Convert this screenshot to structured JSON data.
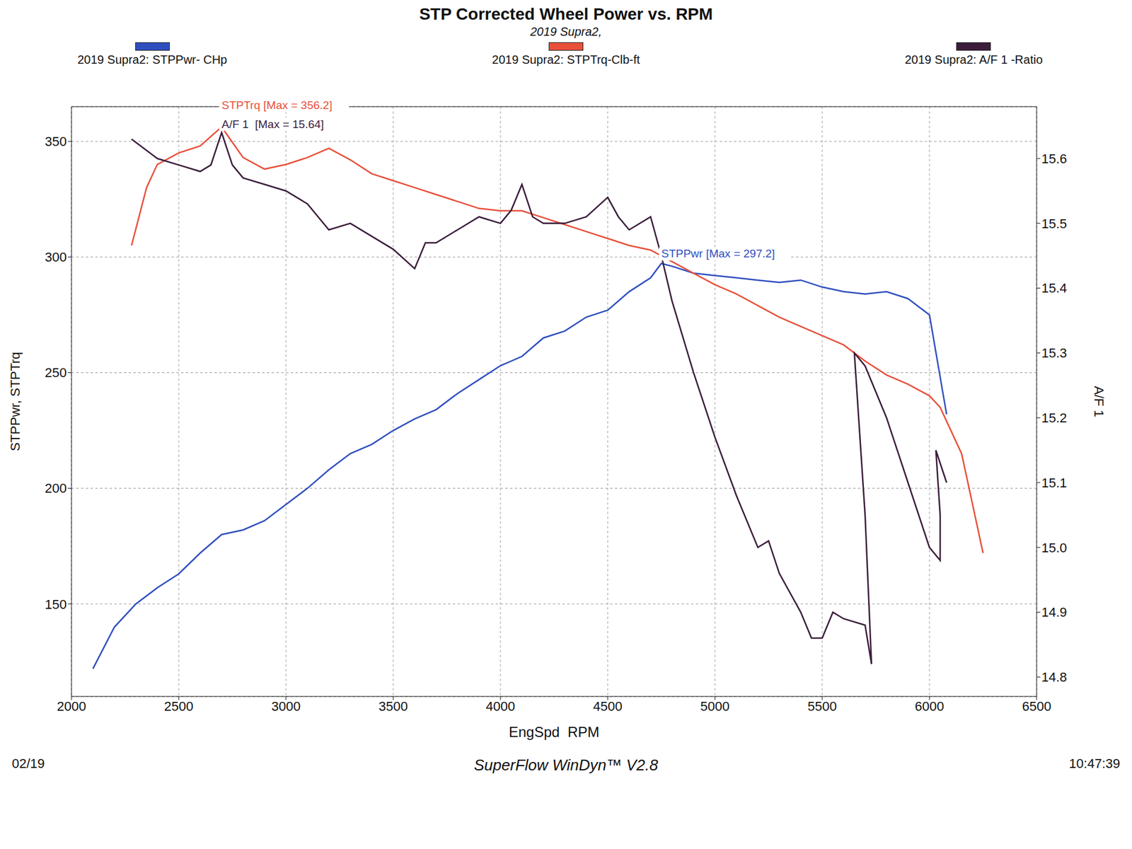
{
  "chart_data": {
    "type": "line",
    "title": "STP Corrected Wheel Power vs. RPM",
    "subtitle": "2019 Supra2,",
    "x_label": "EngSpd  RPM",
    "y_label": "STPPwr, STPTrq",
    "y2_label": "A/F 1",
    "footer": "SuperFlow WinDyn™ V2.8",
    "time": "10:47:39",
    "date": "02/19",
    "xlim": [
      2000,
      6500
    ],
    "xticks": [
      2000,
      2500,
      3000,
      3500,
      4000,
      4500,
      5000,
      5500,
      6000,
      6500
    ],
    "ylim": [
      110,
      365
    ],
    "yticks": [
      150,
      200,
      250,
      300,
      350
    ],
    "y2lim": [
      14.77,
      15.68
    ],
    "y2ticks": [
      14.8,
      14.9,
      15.0,
      15.1,
      15.2,
      15.3,
      15.4,
      15.5,
      15.6
    ],
    "grid": true,
    "legend": "top",
    "series": [
      {
        "name": "2019 Supra2: STPPwr- CHp",
        "color": "#2f4fbf",
        "max_label": "STPPwr [Max = 297.2]",
        "x": [
          2100,
          2200,
          2300,
          2400,
          2500,
          2600,
          2700,
          2800,
          2900,
          3000,
          3100,
          3200,
          3300,
          3400,
          3500,
          3600,
          3700,
          3800,
          3900,
          4000,
          4100,
          4200,
          4300,
          4400,
          4500,
          4600,
          4700,
          4750,
          4800,
          4900,
          5000,
          5100,
          5200,
          5300,
          5400,
          5500,
          5600,
          5700,
          5800,
          5900,
          6000,
          6080
        ],
        "values": [
          122,
          140,
          150,
          157,
          163,
          172,
          180,
          182,
          186,
          193,
          200,
          208,
          215,
          219,
          225,
          230,
          234,
          241,
          247,
          253,
          257,
          265,
          268,
          274,
          277,
          285,
          291,
          297.2,
          296,
          293,
          292,
          291,
          290,
          289,
          290,
          287,
          285,
          284,
          285,
          282,
          275,
          232
        ]
      },
      {
        "name": "2019 Supra2: STPTrq-Clb-ft",
        "color": "#e8503a",
        "max_label": "STPTrq [Max = 356.2]",
        "x": [
          2280,
          2350,
          2400,
          2500,
          2600,
          2700,
          2800,
          2900,
          3000,
          3100,
          3200,
          3300,
          3400,
          3500,
          3600,
          3700,
          3800,
          3900,
          4000,
          4100,
          4200,
          4300,
          4400,
          4500,
          4600,
          4700,
          4800,
          4900,
          5000,
          5100,
          5200,
          5300,
          5400,
          5500,
          5600,
          5700,
          5800,
          5900,
          6000,
          6050,
          6150,
          6250
        ],
        "values": [
          305,
          330,
          340,
          345,
          348,
          356.2,
          343,
          338,
          340,
          343,
          347,
          342,
          336,
          333,
          330,
          327,
          324,
          321,
          320,
          320,
          317,
          314,
          311,
          308,
          305,
          303,
          298,
          293,
          288,
          284,
          279,
          274,
          270,
          266,
          262,
          255,
          249,
          245,
          240,
          235,
          215,
          172
        ]
      },
      {
        "name": "2019 Supra2: A/F 1 -Ratio",
        "color": "#3b1d3b",
        "axis": "y2",
        "max_label": "A/F 1  [Max = 15.64]",
        "x": [
          2280,
          2400,
          2500,
          2600,
          2650,
          2700,
          2750,
          2800,
          2900,
          3000,
          3100,
          3200,
          3300,
          3400,
          3500,
          3600,
          3650,
          3700,
          3800,
          3900,
          4000,
          4050,
          4100,
          4150,
          4200,
          4300,
          4400,
          4500,
          4550,
          4600,
          4700,
          4750,
          4800,
          4900,
          5000,
          5100,
          5200,
          5250,
          5300,
          5400,
          5450,
          5500,
          5550,
          5600,
          5700,
          5730,
          5700,
          5650,
          5700,
          5800,
          5900,
          6000,
          6050,
          6050,
          6030,
          6080
        ],
        "values": [
          15.63,
          15.6,
          15.59,
          15.58,
          15.59,
          15.64,
          15.59,
          15.57,
          15.56,
          15.55,
          15.53,
          15.49,
          15.5,
          15.48,
          15.46,
          15.43,
          15.47,
          15.47,
          15.49,
          15.51,
          15.5,
          15.52,
          15.56,
          15.51,
          15.5,
          15.5,
          15.51,
          15.54,
          15.51,
          15.49,
          15.51,
          15.45,
          15.38,
          15.27,
          15.17,
          15.08,
          15.0,
          15.01,
          14.96,
          14.9,
          14.86,
          14.86,
          14.9,
          14.89,
          14.88,
          14.82,
          15.05,
          15.3,
          15.28,
          15.2,
          15.1,
          15.0,
          14.98,
          15.05,
          15.15,
          15.1
        ]
      }
    ]
  }
}
